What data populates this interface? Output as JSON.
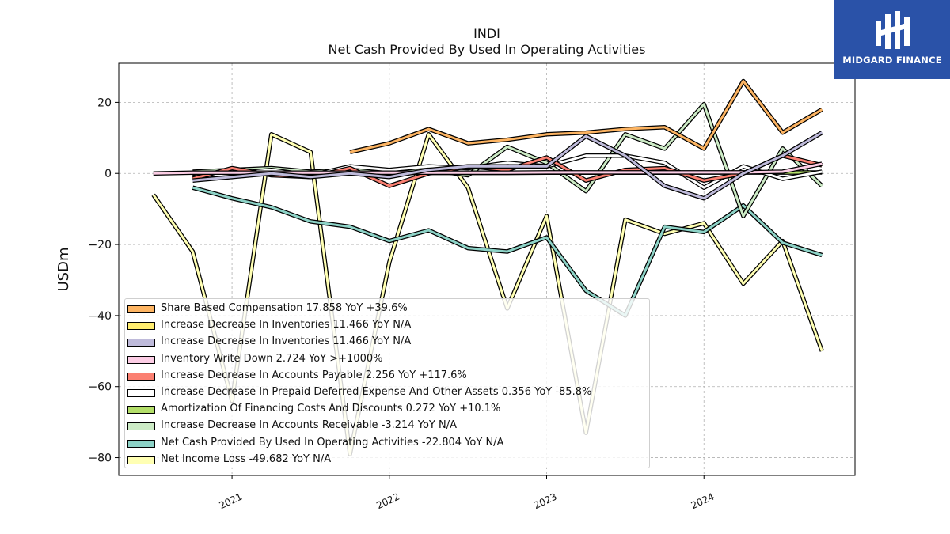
{
  "header": {
    "ticker": "INDI",
    "subtitle": "Net Cash Provided By Used In Operating Activities"
  },
  "brand": {
    "name": "MIDGARD FINANCE",
    "color": "#2a52a8",
    "icon": "midgard-logo-icon"
  },
  "chart_data": {
    "type": "line",
    "ylabel": "USDm",
    "ylim": [
      -85,
      31
    ],
    "xlim": [
      2020.28,
      2024.96
    ],
    "xticks": [
      2021,
      2022,
      2023,
      2024
    ],
    "xtick_labels": [
      "2021",
      "2022",
      "2023",
      "2024"
    ],
    "yticks": [
      -80,
      -60,
      -40,
      -20,
      0,
      20
    ],
    "ytick_labels": [
      "−80",
      "−60",
      "−40",
      "−20",
      "0",
      "20"
    ],
    "grid": true,
    "legend_placement": "lower-left",
    "series": [
      {
        "name": "Net Income Loss",
        "legend": "Net Income Loss  -49.682 YoY N/A",
        "color": "#ffffb3",
        "x": [
          2020.5,
          2020.75,
          2021.0,
          2021.25,
          2021.5,
          2021.75,
          2022.0,
          2022.25,
          2022.5,
          2022.75,
          2023.0,
          2023.25,
          2023.5,
          2023.75,
          2024.0,
          2024.25,
          2024.5,
          2024.75
        ],
        "y": [
          -6,
          -22,
          -64,
          11,
          6,
          -79,
          -25,
          11,
          -4,
          -38,
          -12,
          -73,
          -13,
          -17,
          -14,
          -31,
          -19,
          -50
        ]
      },
      {
        "name": "Net Cash Provided By Used In Operating Activities",
        "legend": "Net Cash Provided By Used In Operating Activities  -22.804 YoY N/A",
        "color": "#8dd3c7",
        "x": [
          2020.75,
          2021.0,
          2021.25,
          2021.5,
          2021.75,
          2022.0,
          2022.25,
          2022.5,
          2022.75,
          2023.0,
          2023.25,
          2023.5,
          2023.75,
          2024.0,
          2024.25,
          2024.5,
          2024.75
        ],
        "y": [
          -4,
          -7,
          -9.5,
          -13.5,
          -15,
          -19,
          -16,
          -21,
          -22,
          -18,
          -33,
          -40,
          -15,
          -16.5,
          -9,
          -19.5,
          -23
        ]
      },
      {
        "name": "Increase Decrease In Accounts Receivable",
        "legend": "Increase Decrease In Accounts Receivable  -3.214 YoY N/A",
        "color": "#ccebc5",
        "x": [
          2020.75,
          2021.0,
          2021.25,
          2021.5,
          2021.75,
          2022.0,
          2022.25,
          2022.5,
          2022.75,
          2023.0,
          2023.25,
          2023.5,
          2023.75,
          2024.0,
          2024.25,
          2024.5,
          2024.75
        ],
        "y": [
          0.5,
          1,
          1.5,
          0.5,
          1,
          0.5,
          1,
          -0.5,
          7.5,
          3,
          -5,
          11,
          7,
          19.5,
          -12,
          7,
          -3.5
        ]
      },
      {
        "name": "Amortization Of Financing Costs And Discounts",
        "legend": "Amortization Of Financing Costs And Discounts  0.272 YoY +10.1%",
        "color": "#b3de69",
        "x": [
          2020.75,
          2021.0,
          2021.25,
          2021.5,
          2021.75,
          2022.0,
          2022.25,
          2022.5,
          2022.75,
          2023.0,
          2023.25,
          2023.5,
          2023.75,
          2024.0,
          2024.25,
          2024.5,
          2024.75
        ],
        "y": [
          0.1,
          0.1,
          0.1,
          0.1,
          0.1,
          0.15,
          0.15,
          0.15,
          0.15,
          0.2,
          0.2,
          0.2,
          0.2,
          0.25,
          0.25,
          0.25,
          0.27
        ]
      },
      {
        "name": "Increase Decrease In Prepaid Deferred Expense And Other Assets",
        "legend": "Increase Decrease In Prepaid Deferred Expense And Other Assets  0.356 YoY -85.8%",
        "color": "#ffffff",
        "x": [
          2020.75,
          2021.0,
          2021.25,
          2021.5,
          2021.75,
          2022.0,
          2022.25,
          2022.5,
          2022.75,
          2023.0,
          2023.25,
          2023.5,
          2023.75,
          2024.0,
          2024.25,
          2024.5,
          2024.75
        ],
        "y": [
          -1,
          0,
          1,
          -0.5,
          2,
          1,
          2,
          1.5,
          3,
          2,
          5,
          5,
          3,
          -4,
          2,
          -1.5,
          0.5
        ]
      },
      {
        "name": "Increase Decrease In Accounts Payable",
        "legend": "Increase Decrease In Accounts Payable  2.256 YoY +117.6%",
        "color": "#fb8072",
        "x": [
          2020.75,
          2021.0,
          2021.25,
          2021.5,
          2021.75,
          2022.0,
          2022.25,
          2022.5,
          2022.75,
          2023.0,
          2023.25,
          2023.5,
          2023.75,
          2024.0,
          2024.25,
          2024.5,
          2024.75
        ],
        "y": [
          -1.5,
          1.5,
          -0.5,
          -1,
          1.5,
          -3.5,
          0,
          2,
          1,
          4.5,
          -2,
          1,
          1.5,
          -2,
          0,
          5,
          2.3
        ]
      },
      {
        "name": "Inventory Write Down",
        "legend": "Inventory Write Down  2.724 YoY >+1000%",
        "color": "#fccde5",
        "x": [
          2020.5,
          2020.75,
          2021.0,
          2021.25,
          2021.5,
          2021.75,
          2022.0,
          2022.25,
          2022.5,
          2022.75,
          2023.0,
          2023.25,
          2023.5,
          2023.75,
          2024.0,
          2024.25,
          2024.5,
          2024.75
        ],
        "y": [
          0,
          0.2,
          0.2,
          0.2,
          0.2,
          0.2,
          0.2,
          0.2,
          0.2,
          0.2,
          0.3,
          0.3,
          0.3,
          0.3,
          0.3,
          0.3,
          0.5,
          2.7
        ]
      },
      {
        "name": "Increase Decrease In Inventories",
        "legend": "Increase Decrease In Inventories  11.466 YoY N/A",
        "color": "#bebada",
        "x": [
          2020.75,
          2021.0,
          2021.25,
          2021.5,
          2021.75,
          2022.0,
          2022.25,
          2022.5,
          2022.75,
          2023.0,
          2023.25,
          2023.5,
          2023.75,
          2024.0,
          2024.25,
          2024.5,
          2024.75
        ],
        "y": [
          -2,
          -1,
          0,
          -1,
          0,
          -1,
          1,
          2,
          2,
          2,
          10.5,
          5,
          -3.5,
          -7,
          0,
          5,
          11.5
        ]
      },
      {
        "name": "Increase Decrease In Inventories",
        "legend": "Increase Decrease In Inventories  11.466 YoY N/A",
        "color": "#ffed6f",
        "x": [],
        "y": []
      },
      {
        "name": "Share Based Compensation",
        "legend": "Share Based Compensation  17.858 YoY +39.6%",
        "color": "#fdb462",
        "x": [
          2021.75,
          2022.0,
          2022.25,
          2022.5,
          2022.75,
          2023.0,
          2023.25,
          2023.5,
          2023.75,
          2024.0,
          2024.25,
          2024.5,
          2024.75
        ],
        "y": [
          6,
          8.5,
          12.5,
          8.5,
          9.5,
          11,
          11.5,
          12.5,
          13,
          7,
          26,
          11.5,
          18
        ]
      }
    ],
    "legend_order": [
      9,
      8,
      7,
      6,
      5,
      4,
      3,
      2,
      1,
      0
    ]
  }
}
